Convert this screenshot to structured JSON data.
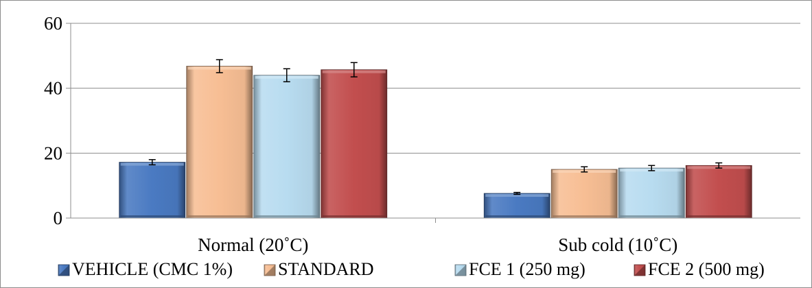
{
  "chart_data": {
    "type": "bar",
    "title": "",
    "xlabel": "",
    "ylabel": "",
    "ylim": [
      0,
      60
    ],
    "yticks": [
      0,
      20,
      40,
      60
    ],
    "grid": true,
    "legend_position": "bottom",
    "categories": [
      "Normal (20˚C)",
      "Sub cold (10˚C)"
    ],
    "series": [
      {
        "name": "VEHICLE (CMC 1%)",
        "color": "#4a7ac2",
        "values": [
          17.2,
          7.6
        ],
        "errors": [
          0.8,
          0.3
        ]
      },
      {
        "name": "STANDARD",
        "color": "#f7be94",
        "values": [
          46.8,
          15.0
        ],
        "errors": [
          2.0,
          0.8
        ]
      },
      {
        "name": "FCE 1 (250 mg)",
        "color": "#b8dcf0",
        "values": [
          44.0,
          15.4
        ],
        "errors": [
          2.0,
          0.8
        ]
      },
      {
        "name": "FCE 2 (500 mg)",
        "color": "#c24e4e",
        "values": [
          45.7,
          16.2
        ],
        "errors": [
          2.2,
          0.8
        ]
      }
    ]
  }
}
